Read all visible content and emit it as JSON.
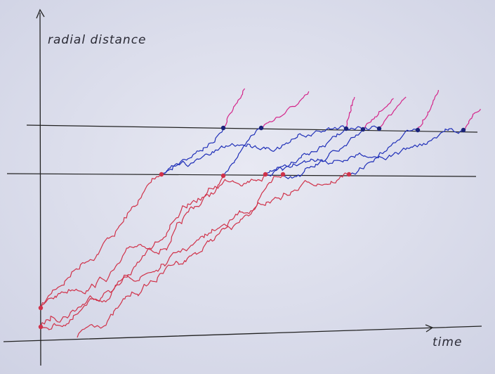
{
  "labels": {
    "y_axis": "radial distance",
    "x_axis": "time"
  }
}
